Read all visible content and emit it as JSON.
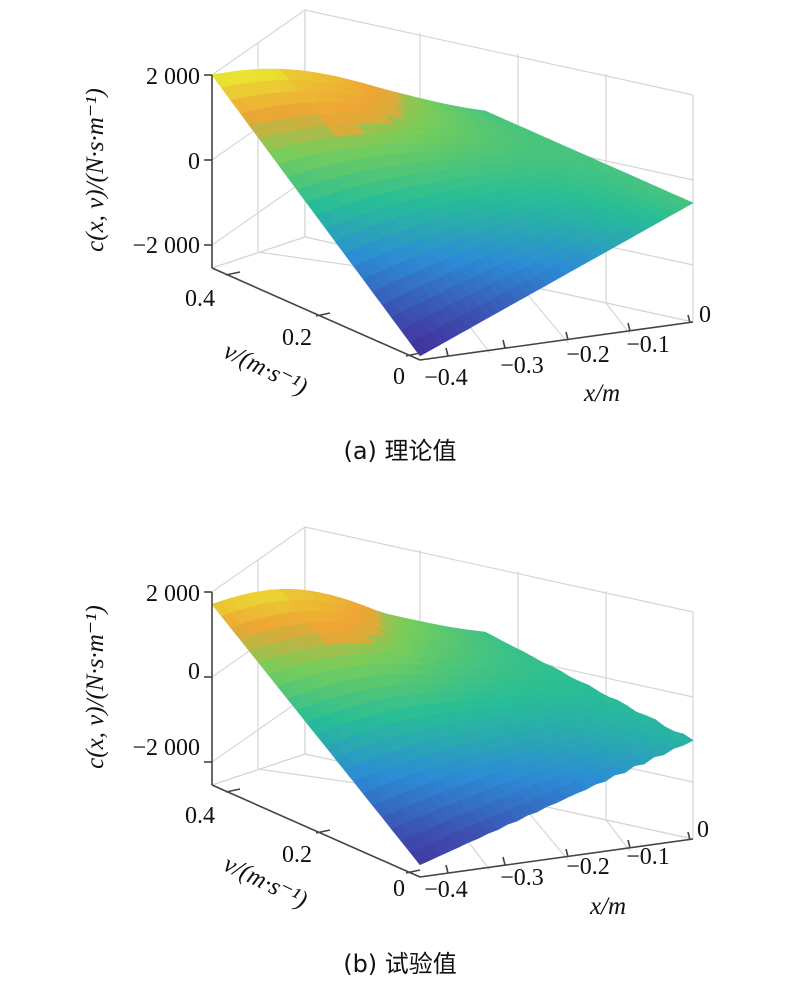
{
  "chart_data": [
    {
      "type": "surface",
      "caption": "(a) 理论值",
      "xlabel": "x/m",
      "ylabel": "v/(m·s⁻¹)",
      "zlabel": "c(x, v)/(N·s·m⁻¹)",
      "x_ticks": [
        "−0.4",
        "−0.3",
        "−0.2",
        "−0.1",
        "0"
      ],
      "v_ticks": [
        "0",
        "0.2",
        "0.4"
      ],
      "z_ticks": [
        "−2 000",
        "0",
        "2 000"
      ],
      "xlim": [
        -0.45,
        0
      ],
      "vlim": [
        0,
        0.45
      ],
      "zlim": [
        -2700,
        2000
      ],
      "corners": {
        "x_-0.45_v_0": -2600,
        "x_-0.45_v_0.45": 2000,
        "x_0_v_0": 200,
        "x_0_v_0.45": 200
      },
      "peak": 2050,
      "noise": 0
    },
    {
      "type": "surface",
      "caption": "(b) 试验值",
      "xlabel": "x/m",
      "ylabel": "v/(m·s⁻¹)",
      "zlabel": "c(x, v)/(N·s·m⁻¹)",
      "x_ticks": [
        "−0.4",
        "−0.3",
        "−0.2",
        "−0.1",
        "0"
      ],
      "v_ticks": [
        "0",
        "0.2",
        "0.4"
      ],
      "z_ticks": [
        "−2 000",
        "0",
        "2 000"
      ],
      "xlim": [
        -0.45,
        0
      ],
      "vlim": [
        0,
        0.45
      ],
      "zlim": [
        -2700,
        2000
      ],
      "corners": {
        "x_-0.45_v_0": -2400,
        "x_-0.45_v_0.45": 1700,
        "x_0_v_0": -300,
        "x_0_v_0.45": 100
      },
      "peak": 1950,
      "noise": 1
    }
  ]
}
